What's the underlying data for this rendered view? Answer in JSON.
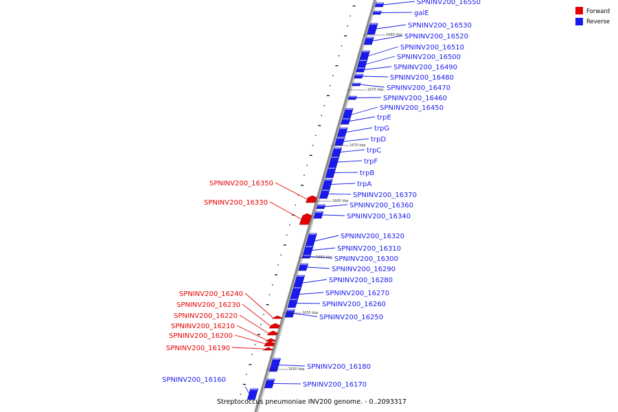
{
  "colors": {
    "forward": "#e60000",
    "reverse": "#1a1aee",
    "axis": "#8a8a8a"
  },
  "legend": [
    {
      "label": "Forward",
      "color": "#e60000"
    },
    {
      "label": "Reverse",
      "color": "#1a1aee"
    }
  ],
  "caption": "Streptococcus pneumoniae INV200 genome. - 0..2093317",
  "ticks": [
    "1680 kbp",
    "1675 kbp",
    "1670 kbp",
    "1665 kbp",
    "1660 kbp",
    "1655 kbp",
    "1650 kbp"
  ],
  "genes_reverse": [
    "SPNINV200_16550",
    "galE",
    "SPNINV200_16530",
    "SPNINV200_16520",
    "SPNINV200_16510",
    "SPNINV200_16500",
    "SPNINV200_16490",
    "SPNINV200_16480",
    "SPNINV200_16470",
    "SPNINV200_16460",
    "SPNINV200_16450",
    "trpE",
    "trpG",
    "trpD",
    "trpC",
    "trpF",
    "trpB",
    "trpA",
    "SPNINV200_16370",
    "SPNINV200_16360",
    "SPNINV200_16340",
    "SPNINV200_16320",
    "SPNINV200_16310",
    "SPNINV200_16300",
    "SPNINV200_16290",
    "SPNINV200_16280",
    "SPNINV200_16270",
    "SPNINV200_16260",
    "SPNINV200_16250",
    "SPNINV200_16180",
    "SPNINV200_16170",
    "SPNINV200_16160"
  ],
  "genes_forward": [
    "SPNINV200_16350",
    "SPNINV200_16330",
    "SPNINV200_16240",
    "SPNINV200_16230",
    "SPNINV200_16220",
    "SPNINV200_16210",
    "SPNINV200_16200",
    "SPNINV200_16190"
  ]
}
